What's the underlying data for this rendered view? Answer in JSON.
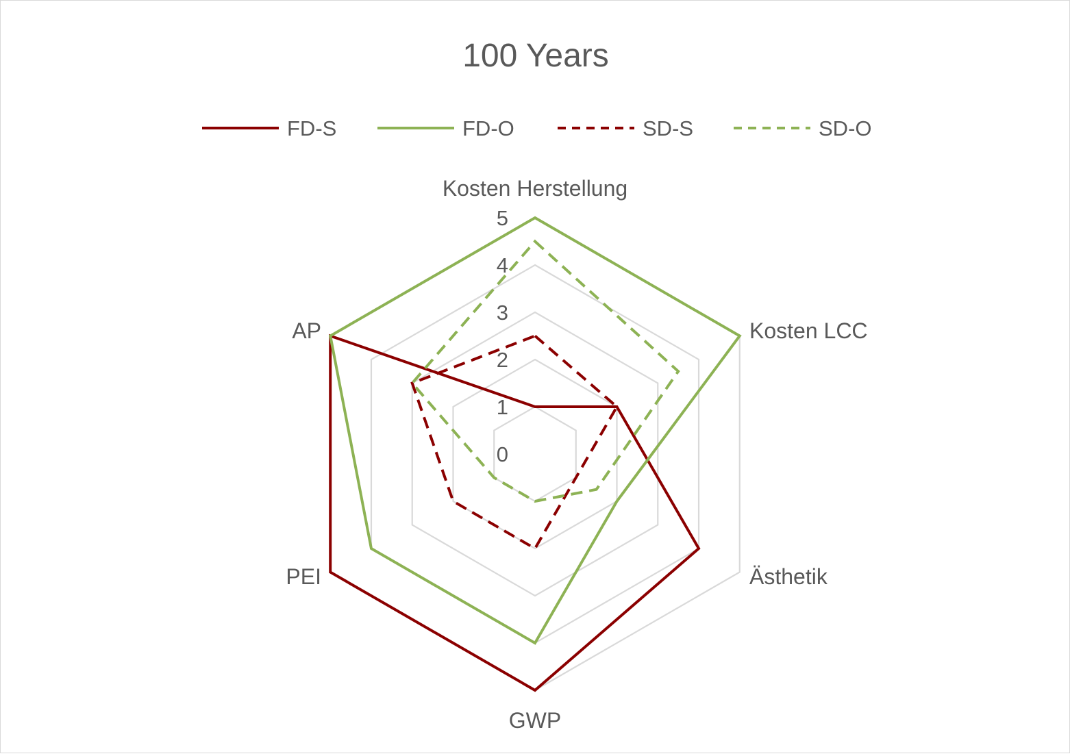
{
  "chart_data": {
    "type": "radar",
    "title": "100 Years",
    "axes": [
      "Kosten Herstellung",
      "Kosten LCC",
      "Ästhetik",
      "GWP",
      "PEI",
      "AP"
    ],
    "rlim": [
      0,
      5
    ],
    "ticks": [
      "0",
      "1",
      "2",
      "3",
      "4",
      "5"
    ],
    "grid": true,
    "legend_position": "top",
    "series": [
      {
        "name": "FD-S",
        "values": [
          1,
          2,
          4,
          5,
          5,
          5
        ],
        "color": "#8b0000",
        "dash": "solid"
      },
      {
        "name": "FD-O",
        "values": [
          5,
          5,
          2,
          4,
          4,
          5
        ],
        "color": "#8db254",
        "dash": "solid"
      },
      {
        "name": "SD-S",
        "values": [
          2.5,
          2,
          1,
          2,
          2,
          3
        ],
        "color": "#8b0000",
        "dash": "dashed"
      },
      {
        "name": "SD-O",
        "values": [
          4.5,
          3.5,
          1.5,
          1,
          1,
          3
        ],
        "color": "#8db254",
        "dash": "dashed"
      }
    ]
  }
}
